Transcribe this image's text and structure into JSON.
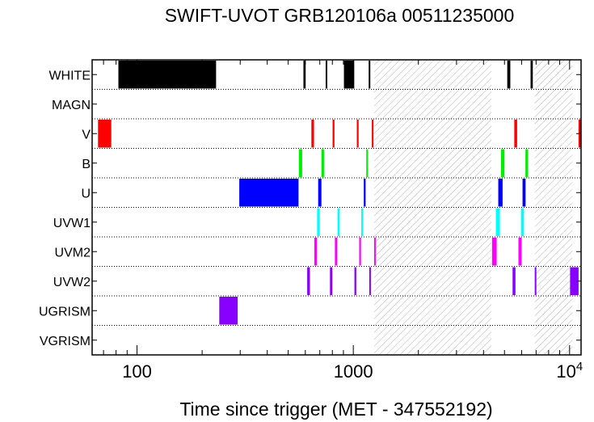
{
  "chart_data": {
    "type": "timeline",
    "title": "SWIFT-UVOT GRB120106a 00511235000",
    "xlabel": "Time since trigger (MET - 347552192)",
    "xscale": "log",
    "xlim": [
      62,
      11300
    ],
    "xticks": [
      {
        "value": 100,
        "label": "100"
      },
      {
        "value": 1000,
        "label": "1000"
      },
      {
        "value": 10000,
        "label": "10",
        "exp": "4"
      }
    ],
    "rows": [
      "WHITE",
      "MAGN",
      "V",
      "B",
      "U",
      "UVW1",
      "UVM2",
      "UVW2",
      "UGRISM",
      "VGRISM"
    ],
    "colors": {
      "WHITE": "#000000",
      "MAGN": "#000000",
      "V": "#ff0000",
      "B": "#00ee00",
      "U": "#0000ff",
      "UVW1": "#00ffff",
      "UVM2": "#ff00ff",
      "UVW2": "#8800ff",
      "UGRISM": "#8800ff",
      "VGRISM": "#000000"
    },
    "hatched_intervals": [
      [
        1250,
        4350
      ],
      [
        6900,
        10300
      ]
    ],
    "exposures": {
      "WHITE": [
        [
          82,
          232
        ],
        [
          588,
          602
        ],
        [
          745,
          758
        ],
        [
          905,
          1010
        ],
        [
          1178,
          1195
        ],
        [
          5150,
          5320
        ],
        [
          6600,
          6760
        ]
      ],
      "MAGN": [],
      "V": [
        [
          66,
          76
        ],
        [
          640,
          658
        ],
        [
          802,
          818
        ],
        [
          1038,
          1058
        ],
        [
          1218,
          1240
        ],
        [
          5550,
          5720
        ],
        [
          11000,
          11300
        ]
      ],
      "B": [
        [
          560,
          580
        ],
        [
          712,
          732
        ],
        [
          1148,
          1168
        ],
        [
          4820,
          5000
        ],
        [
          6250,
          6420
        ]
      ],
      "U": [
        [
          297,
          558
        ],
        [
          688,
          712
        ],
        [
          1118,
          1140
        ],
        [
          4680,
          4900
        ],
        [
          6060,
          6260
        ]
      ],
      "UVW1": [
        [
          680,
          700
        ],
        [
          845,
          865
        ],
        [
          1088,
          1108
        ],
        [
          4560,
          4760
        ],
        [
          5960,
          6150
        ]
      ],
      "UVM2": [
        [
          660,
          680
        ],
        [
          822,
          842
        ],
        [
          1065,
          1085
        ],
        [
          1248,
          1256
        ],
        [
          4380,
          4600
        ],
        [
          5800,
          6000
        ]
      ],
      "UVW2": [
        [
          612,
          630
        ],
        [
          780,
          800
        ],
        [
          1012,
          1032
        ],
        [
          1185,
          1205
        ],
        [
          5450,
          5620
        ],
        [
          6900,
          6950
        ],
        [
          10050,
          11000
        ]
      ],
      "UGRISM": [
        [
          240,
          292
        ]
      ],
      "VGRISM": []
    }
  }
}
